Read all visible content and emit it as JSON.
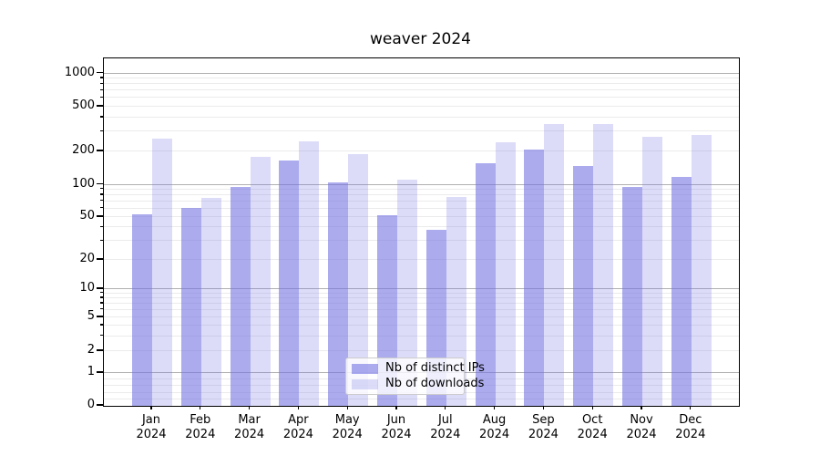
{
  "title": "weaver 2024",
  "chart_data": {
    "type": "bar",
    "title": "weaver 2024",
    "categories": [
      "Jan",
      "Feb",
      "Mar",
      "Apr",
      "May",
      "Jun",
      "Jul",
      "Aug",
      "Sep",
      "Oct",
      "Nov",
      "Dec"
    ],
    "x_tick_year_label": "2024",
    "series": [
      {
        "name": "Nb of distinct IPs",
        "values": [
          53,
          61,
          95,
          165,
          105,
          52,
          38,
          155,
          208,
          148,
          96,
          118
        ],
        "color": "rgba(115,115,227,0.6)"
      },
      {
        "name": "Nb of downloads",
        "values": [
          261,
          76,
          180,
          246,
          190,
          111,
          77,
          240,
          348,
          350,
          270,
          282
        ],
        "color": "rgba(115,115,227,0.25)"
      }
    ],
    "y_axis": {
      "scale": "symlog",
      "tick_values": [
        0,
        1,
        2,
        5,
        10,
        20,
        50,
        100,
        200,
        500,
        1000
      ],
      "tick_labels": [
        "0",
        "1",
        "2",
        "5",
        "10",
        "20",
        "50",
        "100",
        "200",
        "500",
        "1000"
      ],
      "ylim": [
        0,
        1368
      ]
    },
    "grid": true,
    "legend_position": "lower center"
  },
  "legend": {
    "entries": [
      "Nb of distinct IPs",
      "Nb of downloads"
    ]
  },
  "colors": {
    "bar_base": "#7373e3",
    "bar_dark": "rgba(115,115,227,0.6)",
    "bar_light": "rgba(115,115,227,0.25)",
    "grid_major": "#b0b0b0",
    "grid_minor": "#ebebeb",
    "axis": "#000000",
    "legend_border": "#cccccc"
  }
}
